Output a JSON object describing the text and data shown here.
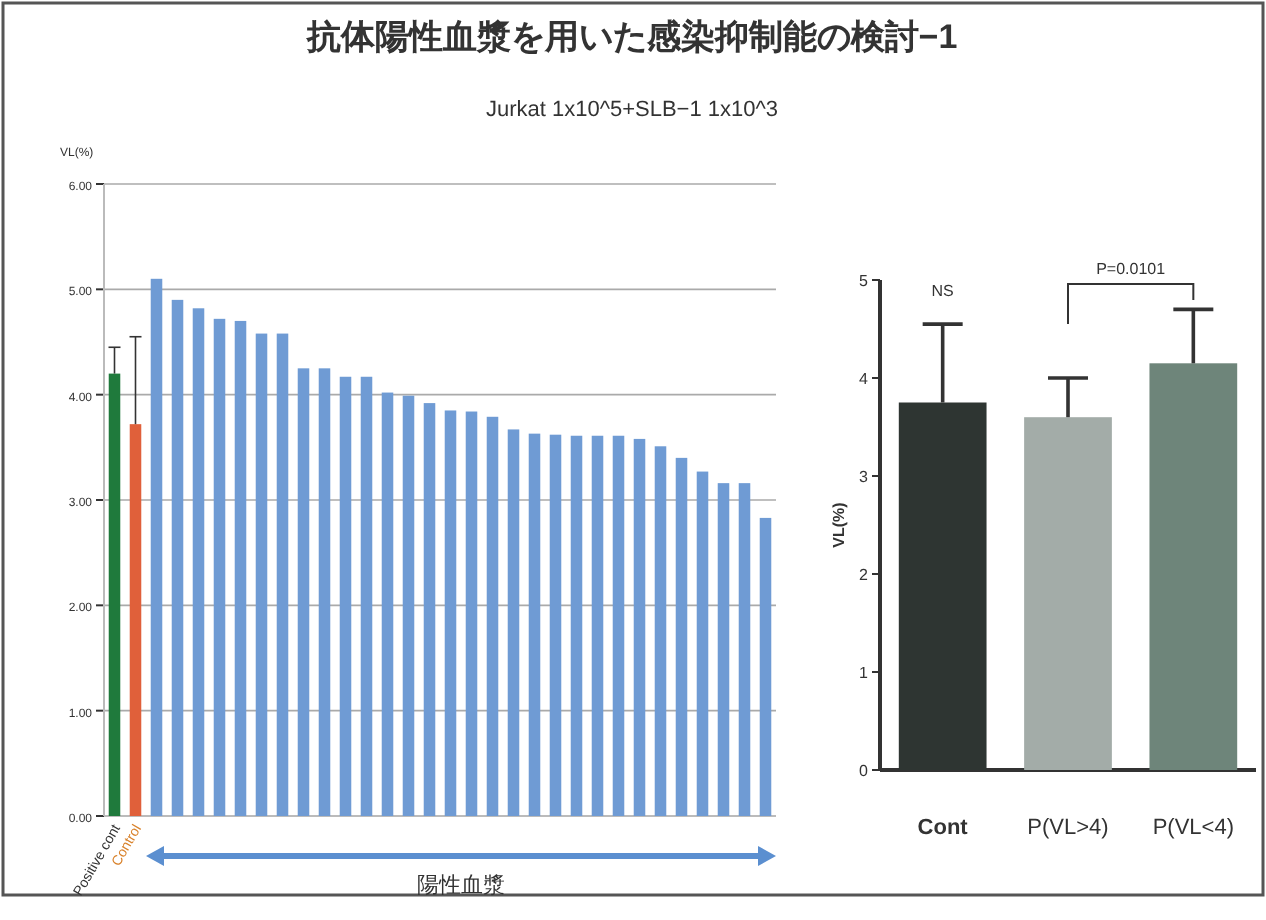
{
  "chart_data": [
    {
      "type": "bar",
      "title": "抗体陽性血漿を用いた感染抑制能の検討−1",
      "subtitle": "Jurkat 1x10^5+SLB−1 1x10^3",
      "ylabel": "VL(%)",
      "categories": [
        "Positive cont",
        "Control",
        null,
        null,
        null,
        null,
        null,
        null,
        null,
        null,
        null,
        null,
        null,
        null,
        null,
        null,
        null,
        null,
        null,
        null,
        null,
        null,
        null,
        null,
        null,
        null,
        null,
        null,
        null,
        null,
        null,
        null
      ],
      "values": [
        4.2,
        3.72,
        5.1,
        4.9,
        4.82,
        4.72,
        4.7,
        4.58,
        4.58,
        4.25,
        4.25,
        4.17,
        4.17,
        4.02,
        3.99,
        3.92,
        3.85,
        3.84,
        3.79,
        3.67,
        3.63,
        3.62,
        3.61,
        3.61,
        3.61,
        3.58,
        3.51,
        3.4,
        3.27,
        3.16,
        3.16,
        2.83
      ],
      "colors": [
        "#1f7a3c",
        "#e0603a",
        "#6f9bd4",
        "#6f9bd4",
        "#6f9bd4",
        "#6f9bd4",
        "#6f9bd4",
        "#6f9bd4",
        "#6f9bd4",
        "#6f9bd4",
        "#6f9bd4",
        "#6f9bd4",
        "#6f9bd4",
        "#6f9bd4",
        "#6f9bd4",
        "#6f9bd4",
        "#6f9bd4",
        "#6f9bd4",
        "#6f9bd4",
        "#6f9bd4",
        "#6f9bd4",
        "#6f9bd4",
        "#6f9bd4",
        "#6f9bd4",
        "#6f9bd4",
        "#6f9bd4",
        "#6f9bd4",
        "#6f9bd4",
        "#6f9bd4",
        "#6f9bd4",
        "#6f9bd4",
        "#6f9bd4"
      ],
      "errors": [
        [
          4.2,
          4.45
        ],
        [
          3.72,
          4.55
        ],
        null,
        null,
        null,
        null,
        null,
        null,
        null,
        null,
        null,
        null,
        null,
        null,
        null,
        null,
        null,
        null,
        null,
        null,
        null,
        null,
        null,
        null,
        null,
        null,
        null,
        null,
        null,
        null,
        null,
        null
      ],
      "ylim": [
        0,
        6
      ],
      "yticks": [
        {
          "value": 0,
          "label": "0.00"
        },
        {
          "value": 1,
          "label": "1.00"
        },
        {
          "value": 2,
          "label": "2.00"
        },
        {
          "value": 3,
          "label": "3.00"
        },
        {
          "value": 4,
          "label": "4.00"
        },
        {
          "value": 5,
          "label": "5.00"
        },
        {
          "value": 6,
          "label": "6.00"
        }
      ],
      "grid": "y",
      "annotations": [
        "陽性血漿"
      ]
    },
    {
      "type": "bar",
      "ylabel": "VL(%)",
      "categories": [
        "Cont",
        "P(VL>4)",
        "P(VL<4)"
      ],
      "values": [
        3.75,
        3.6,
        4.15
      ],
      "colors": [
        "#2e3532",
        "#a3aca8",
        "#6e857a"
      ],
      "errors": [
        [
          3.75,
          4.55
        ],
        [
          3.6,
          4.0
        ],
        [
          4.15,
          4.7
        ]
      ],
      "ylim": [
        0,
        5
      ],
      "yticks": [
        0,
        1,
        2,
        3,
        4,
        5
      ],
      "annotations": [
        {
          "text": "NS",
          "x": "Cont",
          "y": 4.55
        },
        "P=0.0101"
      ]
    }
  ]
}
